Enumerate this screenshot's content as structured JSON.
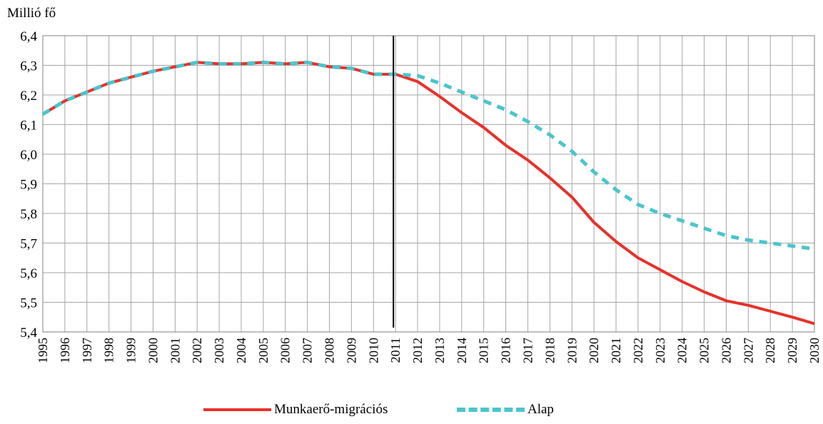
{
  "chart_data": {
    "type": "line",
    "ylabel": "Millió fő",
    "ylim": [
      5.4,
      6.4
    ],
    "yticks": [
      "5,4",
      "5,5",
      "5,6",
      "5,7",
      "5,8",
      "5,9",
      "6,0",
      "6,1",
      "6,2",
      "6,3",
      "6,4"
    ],
    "x": [
      "1995",
      "1996",
      "1997",
      "1998",
      "1999",
      "2000",
      "2001",
      "2002",
      "2003",
      "2004",
      "2005",
      "2006",
      "2007",
      "2008",
      "2009",
      "2010",
      "2011",
      "2012",
      "2013",
      "2014",
      "2015",
      "2016",
      "2017",
      "2018",
      "2019",
      "2020",
      "2021",
      "2022",
      "2023",
      "2024",
      "2025",
      "2026",
      "2027",
      "2028",
      "2029",
      "2030"
    ],
    "vertical_marker": "2011",
    "grid": true,
    "legend_position": "bottom",
    "series": [
      {
        "name": "Munkaerő-migrációs",
        "color": "#e8312a",
        "style": "solid",
        "values": [
          6.135,
          6.18,
          6.21,
          6.24,
          6.26,
          6.28,
          6.295,
          6.31,
          6.305,
          6.305,
          6.31,
          6.305,
          6.31,
          6.295,
          6.29,
          6.27,
          6.27,
          6.245,
          6.195,
          6.14,
          6.09,
          6.03,
          5.98,
          5.92,
          5.855,
          5.77,
          5.705,
          5.65,
          5.61,
          5.57,
          5.535,
          5.505,
          5.49,
          5.47,
          5.45,
          5.428
        ]
      },
      {
        "name": "Alap",
        "color": "#4ac5cc",
        "style": "dashed",
        "values": [
          6.135,
          6.18,
          6.21,
          6.24,
          6.26,
          6.28,
          6.295,
          6.31,
          6.305,
          6.305,
          6.31,
          6.305,
          6.31,
          6.295,
          6.29,
          6.27,
          6.27,
          6.265,
          6.24,
          6.21,
          6.18,
          6.15,
          6.11,
          6.065,
          6.01,
          5.94,
          5.88,
          5.83,
          5.8,
          5.775,
          5.75,
          5.725,
          5.71,
          5.7,
          5.69,
          5.68
        ]
      }
    ]
  }
}
